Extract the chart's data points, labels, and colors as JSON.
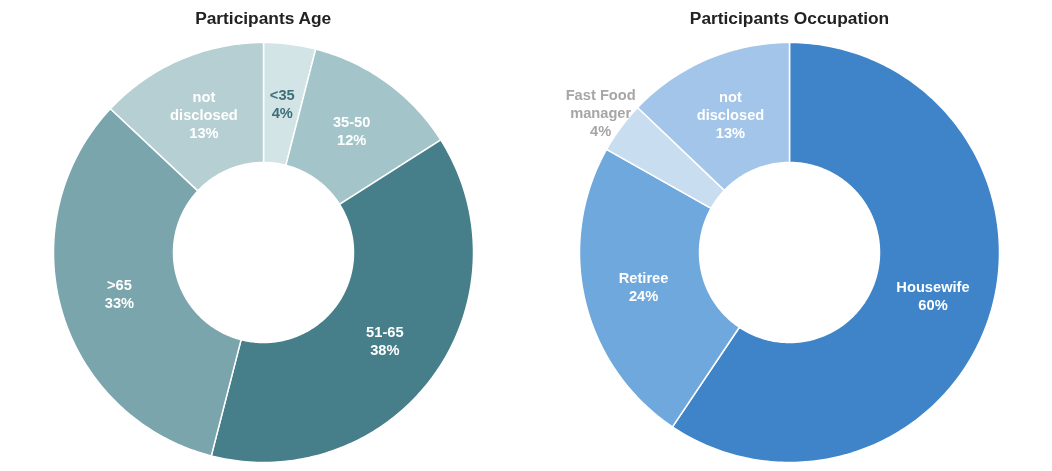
{
  "chart_data": [
    {
      "type": "donut",
      "title": "Participants Age",
      "categories": [
        "<35",
        "35-50",
        "51-65",
        ">65",
        "not disclosed"
      ],
      "values": [
        4,
        12,
        38,
        33,
        13
      ],
      "value_labels": [
        "4%",
        "12%",
        "38%",
        "33%",
        "13%"
      ],
      "colors": [
        "#d3e4e7",
        "#a3c4c9",
        "#467f8a",
        "#7aa5ad",
        "#b5cfd3"
      ]
    },
    {
      "type": "donut",
      "title": "Participants Occupation",
      "categories": [
        "Housewife",
        "Retiree",
        "Fast Food manager",
        "not disclosed"
      ],
      "values": [
        60,
        24,
        4,
        13
      ],
      "value_labels": [
        "60%",
        "24%",
        "4%",
        "13%"
      ],
      "colors": [
        "#3f84c8",
        "#6fa8dc",
        "#c9ddf1",
        "#a3c5e9"
      ]
    }
  ]
}
